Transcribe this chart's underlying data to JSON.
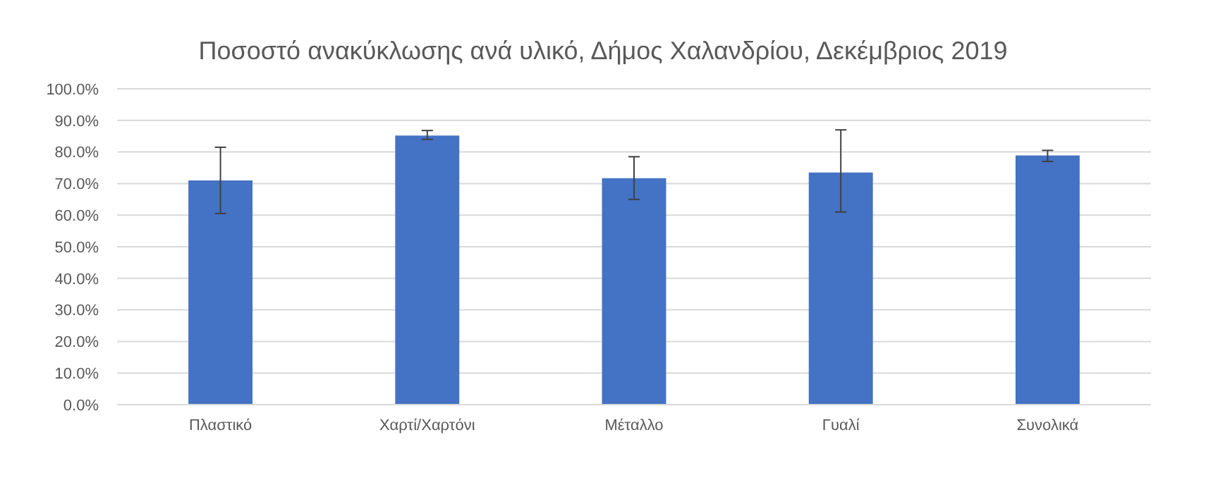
{
  "chart_data": {
    "type": "bar",
    "title": "Ποσοστό ανακύκλωσης ανά υλικό, Δήμος Χαλανδρίου, Δεκέμβριος 2019",
    "categories": [
      "Πλαστικό",
      "Χαρτί/Χαρτόνι",
      "Μέταλλο",
      "Γυαλί",
      "Συνολικά"
    ],
    "values": [
      71,
      85.2,
      71.7,
      73.5,
      78.9
    ],
    "errors": [
      [
        60.5,
        81.5
      ],
      [
        84,
        86.8
      ],
      [
        65,
        78.5
      ],
      [
        61,
        87
      ],
      [
        77,
        80.5
      ]
    ],
    "color": "#4472c4",
    "ylim": [
      0,
      100
    ],
    "yticks": [
      {
        "value": 0,
        "label": "0.0%"
      },
      {
        "value": 10,
        "label": "10.0%"
      },
      {
        "value": 20,
        "label": "20.0%"
      },
      {
        "value": 30,
        "label": "30.0%"
      },
      {
        "value": 40,
        "label": "40.0%"
      },
      {
        "value": 50,
        "label": "50.0%"
      },
      {
        "value": 60,
        "label": "60.0%"
      },
      {
        "value": 70,
        "label": "70.0%"
      },
      {
        "value": 80,
        "label": "80.0%"
      },
      {
        "value": 90,
        "label": "90.0%"
      },
      {
        "value": 100,
        "label": "100.0%"
      }
    ],
    "grid": "y"
  }
}
